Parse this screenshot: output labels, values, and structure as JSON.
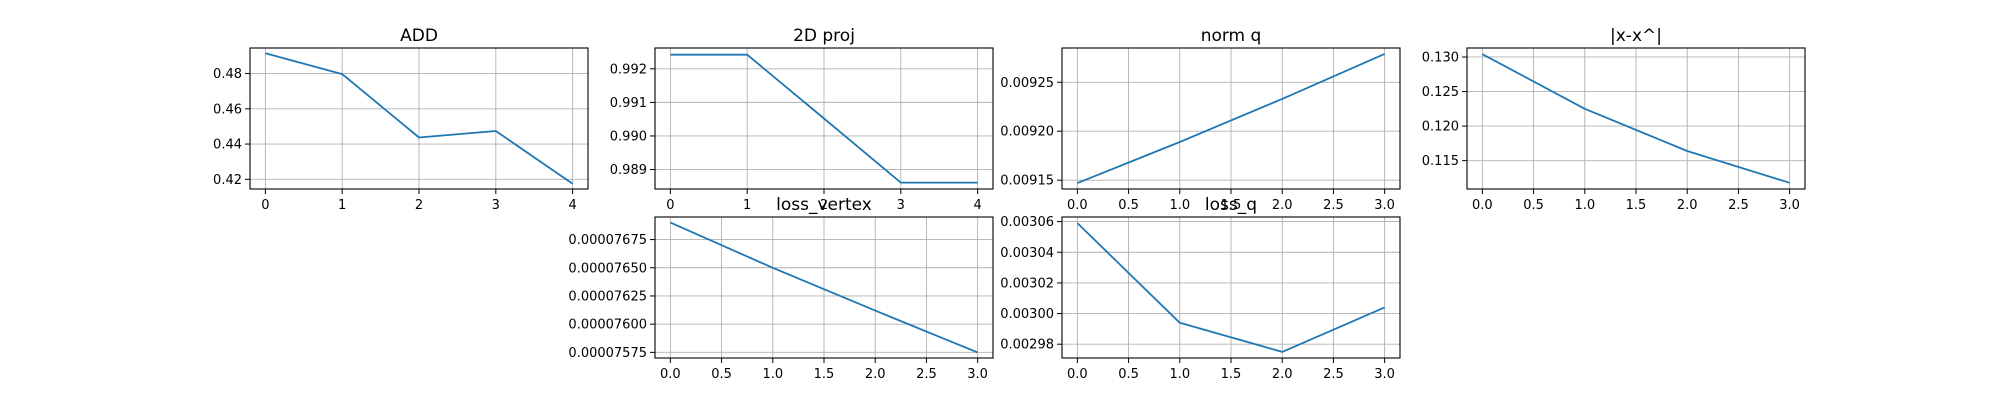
{
  "theme": {
    "line_color": "#1f77b4",
    "grid": true
  },
  "chart_data": [
    {
      "type": "line",
      "title": "ADD",
      "x": [
        0,
        1,
        2,
        3,
        4
      ],
      "series": [
        {
          "values": [
            0.4915,
            0.4797,
            0.4437,
            0.4474,
            0.4175
          ]
        }
      ],
      "xlim": [
        -0.2,
        4.2
      ],
      "ylim": [
        0.4145,
        0.4945
      ],
      "xticks": [
        0,
        1,
        2,
        3,
        4
      ],
      "xtick_labels": [
        "0",
        "1",
        "2",
        "3",
        "4"
      ],
      "yticks": [
        0.42,
        0.44,
        0.46,
        0.48
      ],
      "ytick_labels": [
        "0.42",
        "0.44",
        "0.46",
        "0.48"
      ]
    },
    {
      "type": "line",
      "title": "2D proj",
      "x": [
        0,
        1,
        2,
        3,
        4
      ],
      "series": [
        {
          "values": [
            0.99242,
            0.99242,
            0.99052,
            0.98861,
            0.98861
          ]
        }
      ],
      "xlim": [
        -0.2,
        4.2
      ],
      "ylim": [
        0.98842,
        0.99262
      ],
      "xticks": [
        0,
        1,
        2,
        3,
        4
      ],
      "xtick_labels": [
        "0",
        "1",
        "2",
        "3",
        "4"
      ],
      "yticks": [
        0.989,
        0.99,
        0.991,
        0.992
      ],
      "ytick_labels": [
        "0.989",
        "0.990",
        "0.991",
        "0.992"
      ]
    },
    {
      "type": "line",
      "title": "norm q",
      "x": [
        0,
        1,
        2,
        3
      ],
      "series": [
        {
          "values": [
            0.009147,
            0.009189,
            0.009233,
            0.009279
          ]
        }
      ],
      "xlim": [
        -0.15,
        3.15
      ],
      "ylim": [
        0.009141,
        0.009285
      ],
      "xticks": [
        0,
        0.5,
        1,
        1.5,
        2,
        2.5,
        3
      ],
      "xtick_labels": [
        "0.0",
        "0.5",
        "1.0",
        "1.5",
        "2.0",
        "2.5",
        "3.0"
      ],
      "yticks": [
        0.00915,
        0.0092,
        0.00925
      ],
      "ytick_labels": [
        "0.00915",
        "0.00920",
        "0.00925"
      ]
    },
    {
      "type": "line",
      "title": "|x-x^|",
      "x": [
        0,
        1,
        2,
        3
      ],
      "series": [
        {
          "values": [
            0.1304,
            0.1225,
            0.1164,
            0.1118
          ]
        }
      ],
      "xlim": [
        -0.15,
        3.15
      ],
      "ylim": [
        0.1109,
        0.1313
      ],
      "xticks": [
        0,
        0.5,
        1,
        1.5,
        2,
        2.5,
        3
      ],
      "xtick_labels": [
        "0.0",
        "0.5",
        "1.0",
        "1.5",
        "2.0",
        "2.5",
        "3.0"
      ],
      "yticks": [
        0.115,
        0.12,
        0.125,
        0.13
      ],
      "ytick_labels": [
        "0.115",
        "0.120",
        "0.125",
        "0.130"
      ]
    },
    {
      "type": "line",
      "title": "loss_vertex",
      "x": [
        0,
        1,
        2,
        3
      ],
      "series": [
        {
          "values": [
            7.69e-05,
            7.65e-05,
            7.612e-05,
            7.575e-05
          ]
        }
      ],
      "xlim": [
        -0.15,
        3.15
      ],
      "ylim": [
        7.57e-05,
        7.695e-05
      ],
      "xticks": [
        0,
        0.5,
        1,
        1.5,
        2,
        2.5,
        3
      ],
      "xtick_labels": [
        "0.0",
        "0.5",
        "1.0",
        "1.5",
        "2.0",
        "2.5",
        "3.0"
      ],
      "yticks": [
        7.575e-05,
        7.6e-05,
        7.625e-05,
        7.65e-05,
        7.675e-05
      ],
      "ytick_labels": [
        "0.00007575",
        "0.00007600",
        "0.00007625",
        "0.00007650",
        "0.00007675"
      ]
    },
    {
      "type": "line",
      "title": "loss_q",
      "x": [
        0,
        1,
        2,
        3
      ],
      "series": [
        {
          "values": [
            0.003059,
            0.002994,
            0.002975,
            0.003004
          ]
        }
      ],
      "xlim": [
        -0.15,
        3.15
      ],
      "ylim": [
        0.002971,
        0.003063
      ],
      "xticks": [
        0,
        0.5,
        1,
        1.5,
        2,
        2.5,
        3
      ],
      "xtick_labels": [
        "0.0",
        "0.5",
        "1.0",
        "1.5",
        "2.0",
        "2.5",
        "3.0"
      ],
      "yticks": [
        0.00298,
        0.003,
        0.00302,
        0.00304,
        0.00306
      ],
      "ytick_labels": [
        "0.00298",
        "0.00300",
        "0.00302",
        "0.00304",
        "0.00306"
      ]
    }
  ]
}
